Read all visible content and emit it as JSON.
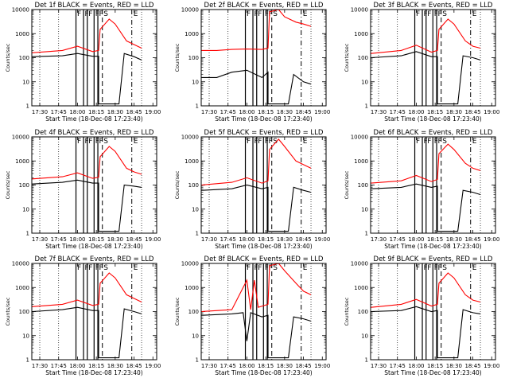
{
  "chart_data": {
    "type": "line",
    "x_ticks": [
      "17:30",
      "17:45",
      "18:00",
      "18:15",
      "18:30",
      "18:45",
      "19:00"
    ],
    "xlabel": "Start Time (18-Dec-08 17:23:40)",
    "ylabel": "Counts/sec",
    "y_ticks": [
      "1",
      "10",
      "100",
      "1000",
      "10000"
    ],
    "y_scale": "log",
    "ylim": [
      1,
      10000
    ],
    "series_colors": {
      "events": "#000000",
      "lld": "#ff0000"
    },
    "marker_labels": {
      "front": "F",
      "start": "S",
      "end": "E"
    },
    "panels": [
      {
        "title": "Det 1f BLACK = Events, RED = LLD",
        "events": [
          [
            17.4,
            110
          ],
          [
            17.8,
            120
          ],
          [
            18.0,
            150
          ],
          [
            18.2,
            115
          ],
          [
            18.28,
            115
          ],
          [
            18.28,
            1.2
          ],
          [
            18.55,
            1.2
          ],
          [
            18.62,
            150
          ],
          [
            18.75,
            110
          ],
          [
            18.85,
            80
          ]
        ],
        "lld": [
          [
            17.4,
            160
          ],
          [
            17.8,
            200
          ],
          [
            18.0,
            300
          ],
          [
            18.2,
            180
          ],
          [
            18.28,
            200
          ],
          [
            18.3,
            1500
          ],
          [
            18.42,
            4000
          ],
          [
            18.5,
            2500
          ],
          [
            18.65,
            500
          ],
          [
            18.75,
            350
          ],
          [
            18.85,
            250
          ]
        ],
        "front_lines": [
          17.98,
          18.08,
          18.13,
          18.22,
          18.27
        ],
        "start": 18.33,
        "end": 18.72
      },
      {
        "title": "Det 2f BLACK = Events, RED = LLD",
        "events": [
          [
            17.4,
            15
          ],
          [
            17.6,
            15
          ],
          [
            17.8,
            25
          ],
          [
            18.0,
            30
          ],
          [
            18.2,
            15
          ],
          [
            18.28,
            25
          ],
          [
            18.28,
            1.2
          ],
          [
            18.55,
            1.2
          ],
          [
            18.62,
            20
          ],
          [
            18.75,
            10
          ],
          [
            18.85,
            8
          ]
        ],
        "lld": [
          [
            17.4,
            200
          ],
          [
            17.6,
            200
          ],
          [
            17.8,
            220
          ],
          [
            18.0,
            230
          ],
          [
            18.2,
            220
          ],
          [
            18.28,
            250
          ],
          [
            18.3,
            8000
          ],
          [
            18.42,
            10000
          ],
          [
            18.5,
            5000
          ],
          [
            18.65,
            3000
          ],
          [
            18.75,
            2500
          ],
          [
            18.85,
            2000
          ]
        ],
        "front_lines": [
          17.98,
          18.08,
          18.13,
          18.22,
          18.27
        ],
        "start": 18.33,
        "end": 18.72
      },
      {
        "title": "Det 3f BLACK = Events, RED = LLD",
        "events": [
          [
            17.4,
            100
          ],
          [
            17.8,
            120
          ],
          [
            18.0,
            180
          ],
          [
            18.2,
            110
          ],
          [
            18.28,
            110
          ],
          [
            18.28,
            1.2
          ],
          [
            18.55,
            1.2
          ],
          [
            18.62,
            120
          ],
          [
            18.75,
            100
          ],
          [
            18.85,
            80
          ]
        ],
        "lld": [
          [
            17.4,
            150
          ],
          [
            17.8,
            200
          ],
          [
            18.0,
            330
          ],
          [
            18.2,
            170
          ],
          [
            18.28,
            200
          ],
          [
            18.3,
            1500
          ],
          [
            18.42,
            4000
          ],
          [
            18.5,
            2500
          ],
          [
            18.65,
            500
          ],
          [
            18.75,
            300
          ],
          [
            18.85,
            250
          ]
        ],
        "front_lines": [
          17.98,
          18.08,
          18.13,
          18.22,
          18.27
        ],
        "start": 18.33,
        "end": 18.72
      },
      {
        "title": "Det 4f BLACK = Events, RED = LLD",
        "events": [
          [
            17.4,
            110
          ],
          [
            17.8,
            130
          ],
          [
            18.0,
            160
          ],
          [
            18.2,
            120
          ],
          [
            18.28,
            120
          ],
          [
            18.28,
            1.2
          ],
          [
            18.55,
            1.2
          ],
          [
            18.62,
            100
          ],
          [
            18.75,
            90
          ],
          [
            18.85,
            80
          ]
        ],
        "lld": [
          [
            17.4,
            180
          ],
          [
            17.8,
            220
          ],
          [
            18.0,
            320
          ],
          [
            18.2,
            190
          ],
          [
            18.28,
            210
          ],
          [
            18.3,
            1500
          ],
          [
            18.42,
            4000
          ],
          [
            18.5,
            2500
          ],
          [
            18.65,
            500
          ],
          [
            18.75,
            350
          ],
          [
            18.85,
            280
          ]
        ],
        "front_lines": [
          17.98,
          18.08,
          18.13,
          18.22,
          18.27
        ],
        "start": 18.33,
        "end": 18.72
      },
      {
        "title": "Det 5f BLACK = Events, RED = LLD",
        "events": [
          [
            17.4,
            60
          ],
          [
            17.8,
            70
          ],
          [
            18.0,
            100
          ],
          [
            18.2,
            70
          ],
          [
            18.28,
            80
          ],
          [
            18.28,
            1.2
          ],
          [
            18.55,
            1.2
          ],
          [
            18.62,
            80
          ],
          [
            18.75,
            60
          ],
          [
            18.85,
            50
          ]
        ],
        "lld": [
          [
            17.4,
            100
          ],
          [
            17.8,
            130
          ],
          [
            18.0,
            200
          ],
          [
            18.2,
            120
          ],
          [
            18.28,
            150
          ],
          [
            18.3,
            3000
          ],
          [
            18.42,
            8000
          ],
          [
            18.5,
            4000
          ],
          [
            18.65,
            1000
          ],
          [
            18.75,
            700
          ],
          [
            18.85,
            500
          ]
        ],
        "front_lines": [
          17.98,
          18.08,
          18.13,
          18.22,
          18.27
        ],
        "start": 18.33,
        "end": 18.72
      },
      {
        "title": "Det 6f BLACK = Events, RED = LLD",
        "events": [
          [
            17.4,
            70
          ],
          [
            17.8,
            80
          ],
          [
            18.0,
            110
          ],
          [
            18.2,
            80
          ],
          [
            18.28,
            90
          ],
          [
            18.28,
            1.2
          ],
          [
            18.55,
            1.2
          ],
          [
            18.62,
            60
          ],
          [
            18.75,
            50
          ],
          [
            18.85,
            40
          ]
        ],
        "lld": [
          [
            17.4,
            120
          ],
          [
            17.8,
            150
          ],
          [
            18.0,
            250
          ],
          [
            18.2,
            140
          ],
          [
            18.28,
            170
          ],
          [
            18.3,
            2000
          ],
          [
            18.42,
            5000
          ],
          [
            18.5,
            3000
          ],
          [
            18.65,
            800
          ],
          [
            18.75,
            500
          ],
          [
            18.85,
            400
          ]
        ],
        "front_lines": [
          17.98,
          18.08,
          18.13,
          18.22,
          18.27
        ],
        "start": 18.33,
        "end": 18.72
      },
      {
        "title": "Det 7f BLACK = Events, RED = LLD",
        "events": [
          [
            17.4,
            100
          ],
          [
            17.8,
            120
          ],
          [
            18.0,
            150
          ],
          [
            18.2,
            110
          ],
          [
            18.28,
            110
          ],
          [
            18.28,
            1.2
          ],
          [
            18.55,
            1.2
          ],
          [
            18.62,
            130
          ],
          [
            18.75,
            100
          ],
          [
            18.85,
            80
          ]
        ],
        "lld": [
          [
            17.4,
            160
          ],
          [
            17.8,
            200
          ],
          [
            18.0,
            300
          ],
          [
            18.2,
            180
          ],
          [
            18.28,
            200
          ],
          [
            18.3,
            1500
          ],
          [
            18.42,
            4000
          ],
          [
            18.5,
            2500
          ],
          [
            18.65,
            500
          ],
          [
            18.75,
            350
          ],
          [
            18.85,
            250
          ]
        ],
        "front_lines": [
          17.98,
          18.08,
          18.13,
          18.22,
          18.27
        ],
        "start": 18.33,
        "end": 18.72
      },
      {
        "title": "Det 8f BLACK = Events, RED = LLD",
        "events": [
          [
            17.4,
            70
          ],
          [
            17.8,
            80
          ],
          [
            17.95,
            90
          ],
          [
            18.0,
            6
          ],
          [
            18.05,
            90
          ],
          [
            18.2,
            60
          ],
          [
            18.28,
            70
          ],
          [
            18.28,
            1.2
          ],
          [
            18.55,
            1.2
          ],
          [
            18.62,
            60
          ],
          [
            18.75,
            50
          ],
          [
            18.85,
            40
          ]
        ],
        "lld": [
          [
            17.4,
            100
          ],
          [
            17.8,
            120
          ],
          [
            18.0,
            2000
          ],
          [
            18.05,
            120
          ],
          [
            18.1,
            2000
          ],
          [
            18.15,
            150
          ],
          [
            18.28,
            200
          ],
          [
            18.3,
            8000
          ],
          [
            18.42,
            10000
          ],
          [
            18.5,
            5000
          ],
          [
            18.65,
            1500
          ],
          [
            18.75,
            700
          ],
          [
            18.85,
            500
          ]
        ],
        "front_lines": [
          17.98,
          18.08,
          18.13,
          18.22,
          18.27
        ],
        "start": 18.33,
        "end": 18.72
      },
      {
        "title": "Det 9f BLACK = Events, RED = LLD",
        "events": [
          [
            17.4,
            100
          ],
          [
            17.8,
            110
          ],
          [
            18.0,
            160
          ],
          [
            18.2,
            100
          ],
          [
            18.28,
            110
          ],
          [
            18.28,
            1.2
          ],
          [
            18.55,
            1.2
          ],
          [
            18.62,
            120
          ],
          [
            18.75,
            90
          ],
          [
            18.85,
            80
          ]
        ],
        "lld": [
          [
            17.4,
            150
          ],
          [
            17.8,
            200
          ],
          [
            18.0,
            320
          ],
          [
            18.2,
            170
          ],
          [
            18.28,
            200
          ],
          [
            18.3,
            1500
          ],
          [
            18.42,
            4000
          ],
          [
            18.5,
            2500
          ],
          [
            18.65,
            500
          ],
          [
            18.75,
            300
          ],
          [
            18.85,
            250
          ]
        ],
        "front_lines": [
          17.98,
          18.08,
          18.13,
          18.22,
          18.27
        ],
        "start": 18.33,
        "end": 18.72
      }
    ]
  }
}
